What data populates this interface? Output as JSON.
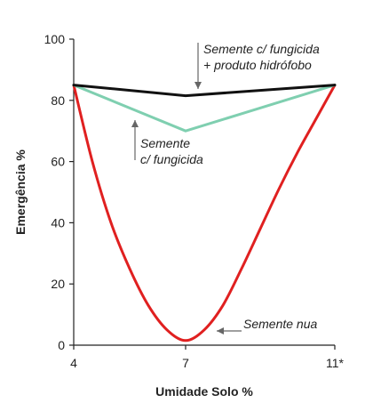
{
  "chart_data": {
    "type": "line",
    "xlabel": "Umidade Solo %",
    "ylabel": "Emergência  %",
    "x_ticks": [
      "4",
      "7",
      "11*"
    ],
    "x_tick_values": [
      4,
      7,
      11
    ],
    "y_ticks": [
      0,
      20,
      40,
      60,
      80,
      100
    ],
    "xlim": [
      4,
      11
    ],
    "ylim": [
      0,
      100
    ],
    "grid": false,
    "series": [
      {
        "color": "#111111",
        "points": [
          [
            4,
            85
          ],
          [
            7,
            81.5
          ],
          [
            11,
            85
          ]
        ]
      },
      {
        "color": "#7fcfb0",
        "points": [
          [
            4,
            85
          ],
          [
            7,
            70
          ],
          [
            11,
            85
          ]
        ]
      },
      {
        "color": "#e02020",
        "points": [
          [
            4,
            85
          ],
          [
            4.5,
            60
          ],
          [
            5,
            40
          ],
          [
            5.5,
            25
          ],
          [
            6,
            13
          ],
          [
            6.5,
            5
          ],
          [
            7,
            1.5
          ],
          [
            7.5,
            5
          ],
          [
            8,
            13
          ],
          [
            8.5,
            25
          ],
          [
            9,
            38
          ],
          [
            9.5,
            51
          ],
          [
            10,
            63
          ],
          [
            10.5,
            74
          ],
          [
            11,
            85
          ]
        ]
      }
    ],
    "annotations": [
      {
        "lines": [
          "Semente c/ fungicida",
          "+ produto hidrófobo"
        ]
      },
      {
        "lines": [
          "Semente",
          "c/ fungicida"
        ]
      },
      {
        "lines": [
          "Semente nua"
        ]
      }
    ]
  }
}
